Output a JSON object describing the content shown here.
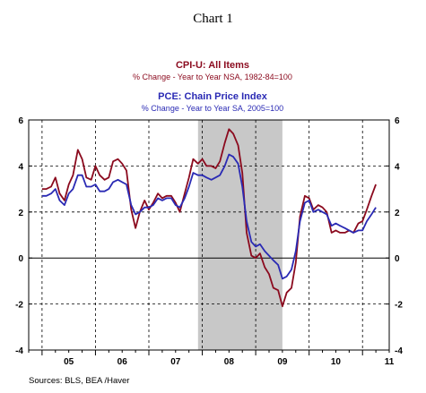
{
  "page_title": "Chart 1",
  "chart_data": {
    "type": "line",
    "x_unit": "quarter",
    "xlim": [
      2004.75,
      2011.5
    ],
    "ylim": [
      -4,
      6
    ],
    "y_ticks": [
      -4,
      -2,
      0,
      2,
      4,
      6
    ],
    "x_tick_labels": [
      "05",
      "06",
      "07",
      "08",
      "09",
      "10",
      "11"
    ],
    "grid": "dashed",
    "legend_placement": "top-center",
    "recession_shading": {
      "from": 2007.92,
      "to": 2009.5,
      "color": "#c8c8c8"
    },
    "legend": [
      {
        "title": "CPI-U: All Items",
        "subtitle": "% Change - Year to Year   NSA, 1982-84=100",
        "color": "#8b0a1e"
      },
      {
        "title": "PCE: Chain Price Index",
        "subtitle": "% Change - Year to Year   SA, 2005=100",
        "color": "#2a2ab4"
      }
    ],
    "series": [
      {
        "name": "CPI-U: All Items",
        "color": "#8b0a1e",
        "points": [
          [
            2005.0,
            3.0
          ],
          [
            2005.08,
            3.0
          ],
          [
            2005.17,
            3.1
          ],
          [
            2005.25,
            3.5
          ],
          [
            2005.33,
            2.8
          ],
          [
            2005.42,
            2.5
          ],
          [
            2005.5,
            3.2
          ],
          [
            2005.58,
            3.6
          ],
          [
            2005.67,
            4.7
          ],
          [
            2005.75,
            4.3
          ],
          [
            2005.83,
            3.5
          ],
          [
            2005.92,
            3.4
          ],
          [
            2006.0,
            4.0
          ],
          [
            2006.08,
            3.6
          ],
          [
            2006.17,
            3.4
          ],
          [
            2006.25,
            3.5
          ],
          [
            2006.33,
            4.2
          ],
          [
            2006.42,
            4.3
          ],
          [
            2006.5,
            4.1
          ],
          [
            2006.58,
            3.8
          ],
          [
            2006.67,
            2.1
          ],
          [
            2006.75,
            1.3
          ],
          [
            2006.83,
            2.0
          ],
          [
            2006.92,
            2.5
          ],
          [
            2007.0,
            2.1
          ],
          [
            2007.08,
            2.4
          ],
          [
            2007.17,
            2.8
          ],
          [
            2007.25,
            2.6
          ],
          [
            2007.33,
            2.7
          ],
          [
            2007.42,
            2.7
          ],
          [
            2007.5,
            2.4
          ],
          [
            2007.58,
            2.0
          ],
          [
            2007.67,
            2.8
          ],
          [
            2007.75,
            3.5
          ],
          [
            2007.83,
            4.3
          ],
          [
            2007.92,
            4.1
          ],
          [
            2008.0,
            4.3
          ],
          [
            2008.08,
            4.0
          ],
          [
            2008.17,
            4.0
          ],
          [
            2008.25,
            3.9
          ],
          [
            2008.33,
            4.2
          ],
          [
            2008.42,
            5.0
          ],
          [
            2008.5,
            5.6
          ],
          [
            2008.58,
            5.4
          ],
          [
            2008.67,
            4.9
          ],
          [
            2008.75,
            3.7
          ],
          [
            2008.83,
            1.1
          ],
          [
            2008.92,
            0.1
          ],
          [
            2009.0,
            0.0
          ],
          [
            2009.08,
            0.2
          ],
          [
            2009.17,
            -0.4
          ],
          [
            2009.25,
            -0.7
          ],
          [
            2009.33,
            -1.3
          ],
          [
            2009.42,
            -1.4
          ],
          [
            2009.5,
            -2.1
          ],
          [
            2009.58,
            -1.5
          ],
          [
            2009.67,
            -1.3
          ],
          [
            2009.75,
            -0.2
          ],
          [
            2009.83,
            1.8
          ],
          [
            2009.92,
            2.7
          ],
          [
            2010.0,
            2.6
          ],
          [
            2010.08,
            2.1
          ],
          [
            2010.17,
            2.3
          ],
          [
            2010.25,
            2.2
          ],
          [
            2010.33,
            2.0
          ],
          [
            2010.42,
            1.1
          ],
          [
            2010.5,
            1.2
          ],
          [
            2010.58,
            1.1
          ],
          [
            2010.67,
            1.1
          ],
          [
            2010.75,
            1.2
          ],
          [
            2010.83,
            1.1
          ],
          [
            2010.92,
            1.5
          ],
          [
            2011.0,
            1.6
          ],
          [
            2011.08,
            2.1
          ],
          [
            2011.17,
            2.7
          ],
          [
            2011.25,
            3.2
          ]
        ]
      },
      {
        "name": "PCE: Chain Price Index",
        "color": "#2a2ab4",
        "points": [
          [
            2005.0,
            2.7
          ],
          [
            2005.08,
            2.7
          ],
          [
            2005.17,
            2.8
          ],
          [
            2005.25,
            3.0
          ],
          [
            2005.33,
            2.5
          ],
          [
            2005.42,
            2.3
          ],
          [
            2005.5,
            2.8
          ],
          [
            2005.58,
            3.0
          ],
          [
            2005.67,
            3.6
          ],
          [
            2005.75,
            3.6
          ],
          [
            2005.83,
            3.1
          ],
          [
            2005.92,
            3.1
          ],
          [
            2006.0,
            3.2
          ],
          [
            2006.08,
            2.9
          ],
          [
            2006.17,
            2.9
          ],
          [
            2006.25,
            3.0
          ],
          [
            2006.33,
            3.3
          ],
          [
            2006.42,
            3.4
          ],
          [
            2006.5,
            3.3
          ],
          [
            2006.58,
            3.2
          ],
          [
            2006.67,
            2.3
          ],
          [
            2006.75,
            1.9
          ],
          [
            2006.83,
            2.0
          ],
          [
            2006.92,
            2.2
          ],
          [
            2007.0,
            2.2
          ],
          [
            2007.08,
            2.3
          ],
          [
            2007.17,
            2.6
          ],
          [
            2007.25,
            2.5
          ],
          [
            2007.33,
            2.6
          ],
          [
            2007.42,
            2.6
          ],
          [
            2007.5,
            2.3
          ],
          [
            2007.58,
            2.2
          ],
          [
            2007.67,
            2.6
          ],
          [
            2007.75,
            3.1
          ],
          [
            2007.83,
            3.7
          ],
          [
            2007.92,
            3.6
          ],
          [
            2008.0,
            3.6
          ],
          [
            2008.08,
            3.5
          ],
          [
            2008.17,
            3.4
          ],
          [
            2008.25,
            3.5
          ],
          [
            2008.33,
            3.6
          ],
          [
            2008.42,
            4.0
          ],
          [
            2008.5,
            4.5
          ],
          [
            2008.58,
            4.4
          ],
          [
            2008.67,
            4.1
          ],
          [
            2008.75,
            3.1
          ],
          [
            2008.83,
            1.6
          ],
          [
            2008.92,
            0.7
          ],
          [
            2009.0,
            0.5
          ],
          [
            2009.08,
            0.6
          ],
          [
            2009.17,
            0.3
          ],
          [
            2009.25,
            0.1
          ],
          [
            2009.33,
            -0.1
          ],
          [
            2009.42,
            -0.3
          ],
          [
            2009.5,
            -0.9
          ],
          [
            2009.58,
            -0.8
          ],
          [
            2009.67,
            -0.5
          ],
          [
            2009.75,
            0.3
          ],
          [
            2009.83,
            1.6
          ],
          [
            2009.92,
            2.4
          ],
          [
            2010.0,
            2.5
          ],
          [
            2010.08,
            2.0
          ],
          [
            2010.17,
            2.1
          ],
          [
            2010.25,
            2.0
          ],
          [
            2010.33,
            1.9
          ],
          [
            2010.42,
            1.4
          ],
          [
            2010.5,
            1.5
          ],
          [
            2010.58,
            1.4
          ],
          [
            2010.67,
            1.3
          ],
          [
            2010.75,
            1.2
          ],
          [
            2010.83,
            1.1
          ],
          [
            2010.92,
            1.2
          ],
          [
            2011.0,
            1.2
          ],
          [
            2011.08,
            1.6
          ],
          [
            2011.17,
            1.9
          ],
          [
            2011.25,
            2.2
          ]
        ]
      }
    ]
  },
  "sources": "Sources:  BLS, BEA /Haver"
}
